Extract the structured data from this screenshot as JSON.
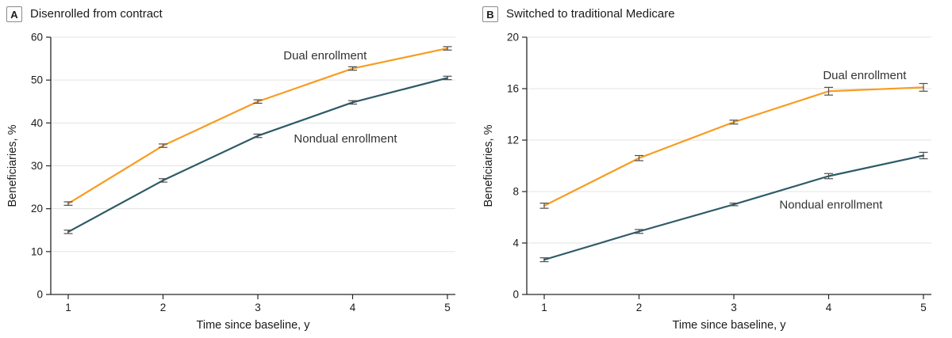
{
  "figure": {
    "panels": [
      {
        "letter": "A",
        "title": "Disenrolled from contract"
      },
      {
        "letter": "B",
        "title": "Switched to traditional Medicare"
      }
    ]
  },
  "style": {
    "orange": "#F89C20",
    "teal": "#2E5A68",
    "grid": "#E3E3E3",
    "axis": "#262626",
    "error": "#4D4D4F",
    "text": "#1A1A1A",
    "label_text": "#333333"
  },
  "chart_data": [
    {
      "type": "line",
      "title": "Disenrolled from contract",
      "xlabel": "Time since baseline, y",
      "ylabel": "Beneficiaries, %",
      "x": [
        1,
        2,
        3,
        4,
        5
      ],
      "xticks": [
        1,
        2,
        3,
        4,
        5
      ],
      "ylim": [
        0,
        60
      ],
      "yticks": [
        0,
        10,
        20,
        30,
        40,
        50,
        60
      ],
      "grid": "horizontal",
      "legend": "inline-labels",
      "series": [
        {
          "name": "Dual enrollment",
          "color": "#F89C20",
          "values": [
            21.2,
            34.7,
            45.0,
            52.7,
            57.4
          ],
          "error": [
            0.4,
            0.4,
            0.4,
            0.4,
            0.4
          ],
          "label_pos": {
            "x": 3.27,
            "y": 55.8
          }
        },
        {
          "name": "Nondual enrollment",
          "color": "#2E5A68",
          "values": [
            14.6,
            26.6,
            37.0,
            44.8,
            50.5
          ],
          "error": [
            0.4,
            0.4,
            0.4,
            0.4,
            0.4
          ],
          "label_pos": {
            "x": 3.38,
            "y": 36.4
          }
        }
      ]
    },
    {
      "type": "line",
      "title": "Switched to traditional Medicare",
      "xlabel": "Time since baseline, y",
      "ylabel": "Beneficiaries, %",
      "x": [
        1,
        2,
        3,
        4,
        5
      ],
      "xticks": [
        1,
        2,
        3,
        4,
        5
      ],
      "ylim": [
        0,
        20
      ],
      "yticks": [
        0,
        4,
        8,
        12,
        16,
        20
      ],
      "grid": "horizontal",
      "legend": "inline-labels",
      "series": [
        {
          "name": "Dual enrollment",
          "color": "#F89C20",
          "values": [
            6.9,
            10.6,
            13.4,
            15.8,
            16.1
          ],
          "error": [
            0.2,
            0.2,
            0.15,
            0.3,
            0.3
          ],
          "label_pos": {
            "x": 3.94,
            "y": 17.05
          }
        },
        {
          "name": "Nondual enrollment",
          "color": "#2E5A68",
          "values": [
            2.7,
            4.9,
            7.0,
            9.2,
            10.8
          ],
          "error": [
            0.15,
            0.15,
            0.1,
            0.2,
            0.25
          ],
          "label_pos": {
            "x": 3.48,
            "y": 7.0
          }
        }
      ]
    }
  ]
}
